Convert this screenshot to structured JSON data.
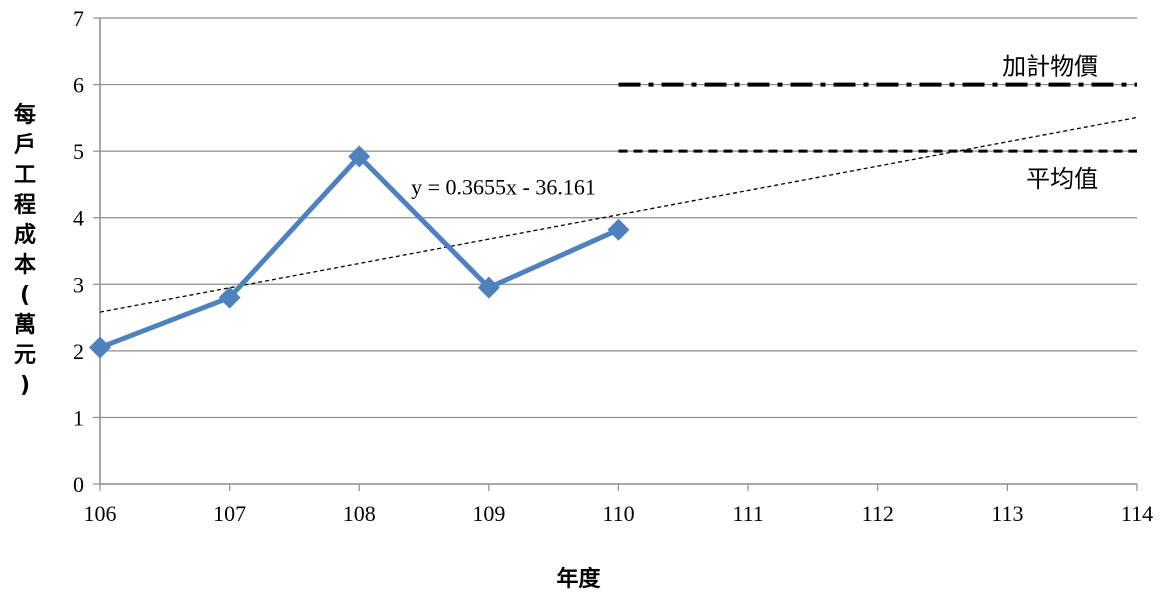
{
  "chart_data": {
    "type": "line",
    "title": "",
    "xlabel": "年度",
    "ylabel": "每戶工程成本(萬元)",
    "xlim": [
      106,
      114
    ],
    "ylim": [
      0,
      7
    ],
    "x_ticks": [
      106,
      107,
      108,
      109,
      110,
      111,
      112,
      113,
      114
    ],
    "y_ticks": [
      0,
      1,
      2,
      3,
      4,
      5,
      6,
      7
    ],
    "grid": "horizontal",
    "series": [
      {
        "x": [
          106,
          107,
          108,
          109,
          110
        ],
        "y": [
          2.05,
          2.8,
          4.92,
          2.95,
          3.82
        ],
        "color": "#4f81bd",
        "marker": "diamond"
      }
    ],
    "trendline": {
      "equation": "y = 0.3655x - 36.161",
      "slope": 0.3655,
      "intercept": -36.161,
      "x_range": [
        106,
        114
      ]
    },
    "reference_lines": [
      {
        "name": "加計物價",
        "y": 6,
        "x_range": [
          110,
          114
        ],
        "style": "dash-dot"
      },
      {
        "name": "平均值",
        "y": 5,
        "x_range": [
          110,
          114
        ],
        "style": "dashed"
      }
    ]
  }
}
